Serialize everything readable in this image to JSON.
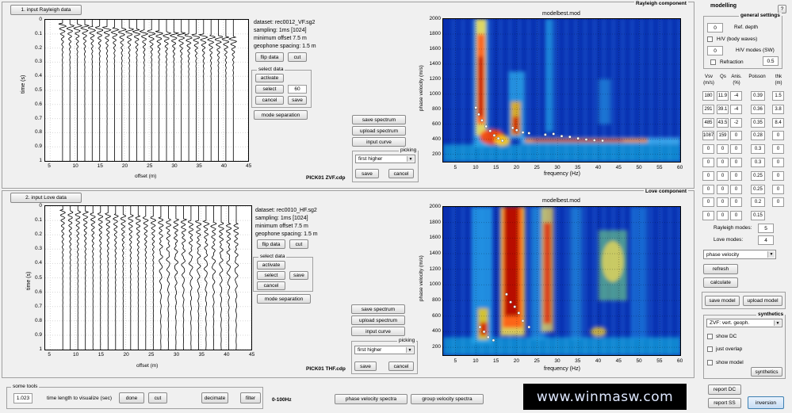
{
  "rayleigh": {
    "input_button": "1. input Rayleigh data",
    "component_label": "Rayleigh component",
    "info": [
      "dataset: rec0012_VF.sg2",
      "sampling: 1ms [1024]",
      "minimum offset 7.5 m",
      "geophone spacing: 1.5 m"
    ],
    "pick_file": "PICK01 ZVF.cdp",
    "flip_label": "flip data",
    "cut_label": "cut",
    "select_legend": "select data",
    "activate_label": "activate",
    "select_label": "select",
    "select_value": "60",
    "cancel_label": "cancel",
    "save_label": "save",
    "mode_sep_label": "mode separation",
    "save_spectrum": "save spectrum",
    "upload_spectrum": "upload spectrum",
    "input_curve": "input curve",
    "picking_legend": "picking",
    "picking_value": "first higher",
    "pick_save": "save",
    "pick_cancel": "cancel",
    "spectrum_title": "modelbest.mod"
  },
  "love": {
    "input_button": "2. input Love data",
    "component_label": "Love component",
    "info": [
      "dataset: rec0010_HF.sg2",
      "sampling: 1ms [1024]",
      "minimum offset 7.5 m",
      "geophone spacing: 1.5 m"
    ],
    "pick_file": "PICK01 THF.cdp",
    "flip_label": "flip data",
    "cut_label": "cut",
    "select_legend": "select data",
    "activate_label": "activate",
    "select_label": "select",
    "cancel_label": "cancel",
    "save_label": "save",
    "mode_sep_label": "mode separation",
    "save_spectrum": "save spectrum",
    "upload_spectrum": "upload spectrum",
    "input_curve": "input curve",
    "picking_legend": "picking",
    "picking_value": "first higher",
    "pick_save": "save",
    "pick_cancel": "cancel",
    "spectrum_title": "modelbest.mod"
  },
  "seis_axes": {
    "ylabel": "time (s)",
    "xlabel": "offset (m)",
    "yticks": [
      "0",
      "0.1",
      "0.2",
      "0.3",
      "0.4",
      "0.5",
      "0.6",
      "0.7",
      "0.8",
      "0.9",
      "1"
    ],
    "xticks": [
      "5",
      "10",
      "15",
      "20",
      "25",
      "30",
      "35",
      "40",
      "45"
    ]
  },
  "spec_axes": {
    "ylabel": "phase velocity (m/s)",
    "xlabel": "frequency (Hz)",
    "yticks": [
      "2000",
      "1800",
      "1600",
      "1400",
      "1200",
      "1000",
      "800",
      "600",
      "400",
      "200"
    ],
    "xticks": [
      "5",
      "10",
      "15",
      "20",
      "25",
      "30",
      "35",
      "40",
      "45",
      "50",
      "55",
      "60"
    ]
  },
  "modelling": {
    "title": "modelling",
    "help": "?",
    "general_legend": "general settings",
    "ref_depth_value": "0",
    "ref_depth_label": "Ref. depth",
    "hv_body_label": "H/V (body waves)",
    "hv_modes_value": "0",
    "hv_modes_label": "H/V modes (SW)",
    "refraction_label": "Refraction",
    "refraction_value": "0.5",
    "headers": [
      "Vsv\n(m/s)",
      "Qs",
      "Anis.\n(%)",
      "Poisson",
      "thk\n(m)"
    ],
    "rows": [
      [
        "180",
        "11.9",
        "-4",
        "0.39",
        "1.5"
      ],
      [
        "291",
        "39.1",
        "-4",
        "0.36",
        "3.8"
      ],
      [
        "485",
        "43.5",
        "-2",
        "0.35",
        "8.4"
      ],
      [
        "1087",
        "159",
        "0",
        "0.28",
        "0"
      ],
      [
        "0",
        "0",
        "0",
        "0.3",
        "0"
      ],
      [
        "0",
        "0",
        "0",
        "0.3",
        "0"
      ],
      [
        "0",
        "0",
        "0",
        "0.25",
        "0"
      ],
      [
        "0",
        "0",
        "0",
        "0.25",
        "0"
      ],
      [
        "0",
        "0",
        "0",
        "0.2",
        "0"
      ],
      [
        "0",
        "0",
        "0",
        "0.15",
        ""
      ]
    ],
    "rayleigh_modes_label": "Rayleigh modes:",
    "rayleigh_modes_value": "5",
    "love_modes_label": "Love modes:",
    "love_modes_value": "4",
    "velocity_select": "phase velocity",
    "refresh": "refresh",
    "calculate": "calculate",
    "save_model": "save model",
    "upload_model": "upload model",
    "synthetics_legend": "synthetics",
    "synth_select": "ZVF: vert. geoph.",
    "show_dc": "show DC",
    "just_overlap": "just overlap",
    "show_model": "show model",
    "synthetics_button": "synthetics",
    "report_dc": "report DC",
    "report_ss": "report SS",
    "inversion": "inversion"
  },
  "tools": {
    "legend": "some tools",
    "time_value": "1.023",
    "time_label": "time length to visualize (sec)",
    "done": "done",
    "cut": "cut",
    "decimate": "decimate",
    "filter": "filter",
    "freq_range": "0-100Hz",
    "phase_spectra": "phase velocity spectra",
    "group_spectra": "group velocity spectra",
    "banner": "www.winmasw.com"
  },
  "chart_data": [
    {
      "type": "heatmap",
      "title": "modelbest.mod",
      "xlabel": "frequency (Hz)",
      "ylabel": "phase velocity (m/s)",
      "xlim": [
        2,
        60
      ],
      "ylim": [
        100,
        2000
      ],
      "picks": [
        [
          10,
          820
        ],
        [
          10.7,
          730
        ],
        [
          11.5,
          650
        ],
        [
          12.5,
          570
        ],
        [
          13.5,
          510
        ],
        [
          14.5,
          450
        ],
        [
          15.5,
          410
        ],
        [
          16.5,
          380
        ],
        [
          19,
          550
        ],
        [
          20,
          520
        ],
        [
          21.5,
          490
        ],
        [
          23,
          480
        ],
        [
          27,
          460
        ],
        [
          29,
          470
        ],
        [
          31,
          440
        ],
        [
          33,
          430
        ],
        [
          35,
          410
        ],
        [
          37,
          395
        ],
        [
          39,
          385
        ],
        [
          41,
          380
        ]
      ]
    },
    {
      "type": "heatmap",
      "title": "modelbest.mod",
      "xlabel": "frequency (Hz)",
      "ylabel": "phase velocity (m/s)",
      "xlim": [
        2,
        60
      ],
      "ylim": [
        100,
        2000
      ],
      "picks": [
        [
          11,
          460
        ],
        [
          12,
          400
        ],
        [
          13,
          330
        ],
        [
          14.3,
          290
        ],
        [
          17.5,
          880
        ],
        [
          18.5,
          780
        ],
        [
          19.5,
          720
        ],
        [
          20.5,
          640
        ],
        [
          21.5,
          540
        ],
        [
          23,
          460
        ]
      ]
    }
  ]
}
